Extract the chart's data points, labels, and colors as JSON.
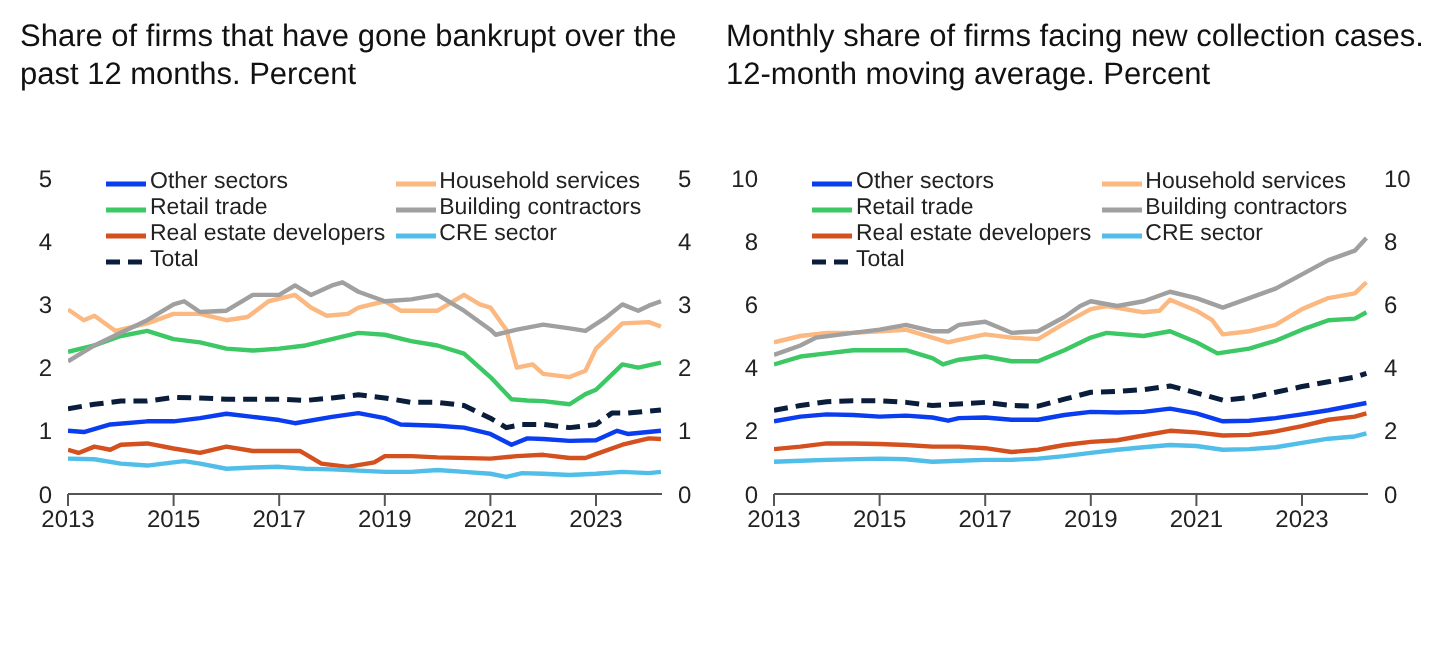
{
  "chart_data": [
    {
      "type": "line",
      "title": "Share of firms that have gone bankrupt over the past 12 months. Percent",
      "xlim": [
        2013,
        2024.25
      ],
      "xticks": [
        2013,
        2015,
        2017,
        2019,
        2021,
        2023
      ],
      "ylim": [
        0,
        5
      ],
      "yticks": [
        0,
        1,
        2,
        3,
        4,
        5
      ],
      "y2lim": [
        0,
        5
      ],
      "y2ticks": [
        0,
        1,
        2,
        3,
        4,
        5
      ],
      "grid": false,
      "legend": "top left",
      "marker": "none",
      "series": [
        {
          "name": "Other sectors",
          "color": "#0a3cf0",
          "x": [
            2013,
            2013.3,
            2013.8,
            2014.5,
            2015,
            2015.5,
            2016,
            2016.5,
            2017,
            2017.3,
            2018,
            2018.5,
            2019,
            2019.3,
            2020,
            2020.5,
            2021,
            2021.4,
            2021.7,
            2022,
            2022.5,
            2023,
            2023.4,
            2023.6,
            2024.23
          ],
          "values": [
            1.0,
            0.98,
            1.1,
            1.15,
            1.15,
            1.2,
            1.27,
            1.22,
            1.17,
            1.12,
            1.22,
            1.28,
            1.2,
            1.1,
            1.08,
            1.05,
            0.95,
            0.78,
            0.88,
            0.87,
            0.84,
            0.85,
            1.0,
            0.95,
            1.0
          ]
        },
        {
          "name": "Household services",
          "color": "#fbb880",
          "x": [
            2013,
            2013.3,
            2013.5,
            2013.9,
            2014.5,
            2015,
            2015.5,
            2016,
            2016.4,
            2016.8,
            2017.3,
            2017.6,
            2017.9,
            2018.3,
            2018.5,
            2019,
            2019.3,
            2020,
            2020.5,
            2020.8,
            2021,
            2021.3,
            2021.5,
            2021.8,
            2022,
            2022.5,
            2022.8,
            2023,
            2023.5,
            2024,
            2024.23
          ],
          "values": [
            2.92,
            2.75,
            2.82,
            2.58,
            2.7,
            2.85,
            2.85,
            2.75,
            2.8,
            3.05,
            3.15,
            2.95,
            2.82,
            2.85,
            2.95,
            3.05,
            2.9,
            2.9,
            3.15,
            3.0,
            2.95,
            2.6,
            2.0,
            2.05,
            1.9,
            1.85,
            1.95,
            2.3,
            2.7,
            2.72,
            2.65
          ]
        },
        {
          "name": "Retail trade",
          "color": "#3cc864",
          "x": [
            2013,
            2013.5,
            2014,
            2014.5,
            2015,
            2015.5,
            2016,
            2016.5,
            2017,
            2017.5,
            2018,
            2018.5,
            2019,
            2019.5,
            2020,
            2020.5,
            2021,
            2021.4,
            2021.7,
            2022,
            2022.5,
            2022.8,
            2023,
            2023.5,
            2023.8,
            2024.23
          ],
          "values": [
            2.25,
            2.35,
            2.5,
            2.58,
            2.45,
            2.4,
            2.3,
            2.27,
            2.3,
            2.35,
            2.45,
            2.55,
            2.52,
            2.42,
            2.35,
            2.22,
            1.85,
            1.5,
            1.48,
            1.47,
            1.42,
            1.58,
            1.65,
            2.05,
            2.0,
            2.08
          ]
        },
        {
          "name": "Building contractors",
          "color": "#a0a0a0",
          "x": [
            2013,
            2013.5,
            2014,
            2014.5,
            2015,
            2015.2,
            2015.5,
            2016,
            2016.5,
            2017,
            2017.3,
            2017.6,
            2018,
            2018.2,
            2018.5,
            2019,
            2019.5,
            2020,
            2020.5,
            2021,
            2021.1,
            2021.5,
            2022,
            2022.5,
            2022.8,
            2023.2,
            2023.5,
            2023.8,
            2024,
            2024.23
          ],
          "values": [
            2.1,
            2.35,
            2.55,
            2.75,
            3.0,
            3.05,
            2.88,
            2.9,
            3.15,
            3.15,
            3.3,
            3.15,
            3.3,
            3.35,
            3.2,
            3.05,
            3.08,
            3.15,
            2.9,
            2.6,
            2.52,
            2.6,
            2.68,
            2.62,
            2.58,
            2.8,
            3.0,
            2.9,
            2.98,
            3.05
          ]
        },
        {
          "name": "Real estate developers",
          "color": "#d4501e",
          "x": [
            2013,
            2013.2,
            2013.5,
            2013.8,
            2014,
            2014.5,
            2015,
            2015.5,
            2016,
            2016.5,
            2017,
            2017.4,
            2017.8,
            2018.3,
            2018.8,
            2019,
            2019.5,
            2020,
            2021,
            2021.5,
            2022,
            2022.5,
            2022.8,
            2023,
            2023.5,
            2024,
            2024.23
          ],
          "values": [
            0.7,
            0.65,
            0.75,
            0.7,
            0.78,
            0.8,
            0.72,
            0.65,
            0.75,
            0.68,
            0.68,
            0.68,
            0.48,
            0.43,
            0.5,
            0.6,
            0.6,
            0.58,
            0.56,
            0.6,
            0.62,
            0.57,
            0.57,
            0.63,
            0.78,
            0.88,
            0.87
          ]
        },
        {
          "name": "CRE sector",
          "color": "#50bee8",
          "x": [
            2013,
            2013.5,
            2014,
            2014.5,
            2015,
            2015.2,
            2015.5,
            2016,
            2016.5,
            2017,
            2017.5,
            2018,
            2018.5,
            2019,
            2019.5,
            2020,
            2020.5,
            2021,
            2021.3,
            2021.6,
            2022,
            2022.5,
            2023,
            2023.5,
            2024,
            2024.23
          ],
          "values": [
            0.56,
            0.55,
            0.48,
            0.45,
            0.5,
            0.52,
            0.48,
            0.4,
            0.42,
            0.43,
            0.4,
            0.39,
            0.37,
            0.35,
            0.35,
            0.38,
            0.35,
            0.32,
            0.27,
            0.33,
            0.32,
            0.3,
            0.32,
            0.35,
            0.33,
            0.35
          ]
        },
        {
          "name": "Total",
          "color": "#0a1e3c",
          "line_style": "dashed",
          "x": [
            2013,
            2013.5,
            2014,
            2014.5,
            2015,
            2015.5,
            2016,
            2016.5,
            2017,
            2017.5,
            2018,
            2018.5,
            2019,
            2019.5,
            2020,
            2020.5,
            2021,
            2021.3,
            2021.6,
            2022,
            2022.5,
            2022.8,
            2023,
            2023.3,
            2023.6,
            2024.23
          ],
          "values": [
            1.35,
            1.42,
            1.47,
            1.47,
            1.53,
            1.52,
            1.5,
            1.5,
            1.5,
            1.48,
            1.52,
            1.57,
            1.52,
            1.45,
            1.45,
            1.4,
            1.2,
            1.05,
            1.1,
            1.1,
            1.05,
            1.08,
            1.1,
            1.28,
            1.28,
            1.33
          ]
        }
      ]
    },
    {
      "type": "line",
      "title": "Monthly share of firms facing new collection cases. 12-month moving average. Percent",
      "xlim": [
        2013,
        2024.25
      ],
      "xticks": [
        2013,
        2015,
        2017,
        2019,
        2021,
        2023
      ],
      "ylim": [
        0,
        10
      ],
      "yticks": [
        0,
        2,
        4,
        6,
        8,
        10
      ],
      "y2lim": [
        0,
        10
      ],
      "y2ticks": [
        0,
        2,
        4,
        6,
        8,
        10
      ],
      "grid": false,
      "legend": "top left",
      "marker": "none",
      "series": [
        {
          "name": "Other sectors",
          "color": "#0a3cf0",
          "x": [
            2013,
            2013.5,
            2014,
            2014.5,
            2015,
            2015.5,
            2016,
            2016.3,
            2016.5,
            2017,
            2017.5,
            2018,
            2018.5,
            2019,
            2019.5,
            2020,
            2020.5,
            2021,
            2021.5,
            2022,
            2022.5,
            2023,
            2023.5,
            2024.22
          ],
          "values": [
            2.3,
            2.45,
            2.52,
            2.5,
            2.45,
            2.48,
            2.42,
            2.32,
            2.4,
            2.42,
            2.35,
            2.35,
            2.5,
            2.6,
            2.58,
            2.6,
            2.7,
            2.55,
            2.3,
            2.32,
            2.4,
            2.52,
            2.65,
            2.88
          ]
        },
        {
          "name": "Household services",
          "color": "#fbb880",
          "x": [
            2013,
            2013.5,
            2014,
            2014.5,
            2015,
            2015.5,
            2016,
            2016.3,
            2016.5,
            2017,
            2017.5,
            2018,
            2018.5,
            2019,
            2019.3,
            2020,
            2020.3,
            2020.5,
            2021,
            2021.3,
            2021.5,
            2022,
            2022.5,
            2023,
            2023.5,
            2024,
            2024.22
          ],
          "values": [
            4.8,
            5.0,
            5.1,
            5.1,
            5.15,
            5.2,
            4.95,
            4.8,
            4.88,
            5.05,
            4.95,
            4.9,
            5.4,
            5.85,
            5.95,
            5.75,
            5.8,
            6.15,
            5.8,
            5.5,
            5.05,
            5.15,
            5.35,
            5.85,
            6.2,
            6.35,
            6.7
          ]
        },
        {
          "name": "Retail trade",
          "color": "#3cc864",
          "x": [
            2013,
            2013.5,
            2014,
            2014.5,
            2015,
            2015.5,
            2016,
            2016.2,
            2016.5,
            2017,
            2017.5,
            2018,
            2018.5,
            2019,
            2019.3,
            2020,
            2020.5,
            2021,
            2021.4,
            2022,
            2022.5,
            2023,
            2023.5,
            2024,
            2024.22
          ],
          "values": [
            4.1,
            4.35,
            4.45,
            4.55,
            4.55,
            4.55,
            4.3,
            4.1,
            4.25,
            4.35,
            4.2,
            4.2,
            4.55,
            4.95,
            5.1,
            5.0,
            5.15,
            4.8,
            4.45,
            4.6,
            4.85,
            5.2,
            5.5,
            5.55,
            5.75
          ]
        },
        {
          "name": "Building contractors",
          "color": "#a0a0a0",
          "x": [
            2013,
            2013.5,
            2013.8,
            2014.5,
            2015,
            2015.5,
            2016,
            2016.3,
            2016.5,
            2017,
            2017.5,
            2018,
            2018.5,
            2018.8,
            2019,
            2019.5,
            2020,
            2020.5,
            2021,
            2021.5,
            2022,
            2022.5,
            2023,
            2023.5,
            2024,
            2024.22
          ],
          "values": [
            4.4,
            4.7,
            4.95,
            5.1,
            5.2,
            5.35,
            5.15,
            5.15,
            5.35,
            5.45,
            5.1,
            5.15,
            5.6,
            5.95,
            6.1,
            5.95,
            6.1,
            6.4,
            6.2,
            5.9,
            6.2,
            6.5,
            6.95,
            7.4,
            7.7,
            8.1
          ]
        },
        {
          "name": "Real estate developers",
          "color": "#d4501e",
          "x": [
            2013,
            2013.5,
            2014,
            2014.5,
            2015,
            2015.5,
            2016,
            2016.5,
            2017,
            2017.5,
            2018,
            2018.5,
            2019,
            2019.5,
            2020,
            2020.5,
            2021,
            2021.5,
            2022,
            2022.5,
            2023,
            2023.5,
            2024,
            2024.22
          ],
          "values": [
            1.42,
            1.5,
            1.6,
            1.6,
            1.58,
            1.55,
            1.5,
            1.5,
            1.45,
            1.33,
            1.4,
            1.55,
            1.65,
            1.7,
            1.85,
            2.0,
            1.95,
            1.85,
            1.87,
            1.98,
            2.15,
            2.35,
            2.45,
            2.55
          ]
        },
        {
          "name": "CRE sector",
          "color": "#50bee8",
          "x": [
            2013,
            2013.5,
            2014,
            2015,
            2015.5,
            2016,
            2016.5,
            2017,
            2017.5,
            2018,
            2018.5,
            2019,
            2019.5,
            2020,
            2020.5,
            2021,
            2021.5,
            2022,
            2022.5,
            2023,
            2023.5,
            2024,
            2024.22
          ],
          "values": [
            1.02,
            1.05,
            1.08,
            1.12,
            1.1,
            1.02,
            1.05,
            1.08,
            1.08,
            1.12,
            1.2,
            1.3,
            1.4,
            1.48,
            1.55,
            1.52,
            1.4,
            1.42,
            1.48,
            1.62,
            1.75,
            1.82,
            1.92
          ]
        },
        {
          "name": "Total",
          "color": "#0a1e3c",
          "line_style": "dashed",
          "x": [
            2013,
            2013.5,
            2014,
            2014.5,
            2015,
            2015.5,
            2016,
            2016.5,
            2017,
            2017.5,
            2018,
            2018.5,
            2019,
            2019.5,
            2020,
            2020.5,
            2021,
            2021.5,
            2022,
            2022.5,
            2023,
            2023.5,
            2024,
            2024.22
          ],
          "values": [
            2.65,
            2.8,
            2.92,
            2.95,
            2.95,
            2.9,
            2.8,
            2.85,
            2.9,
            2.8,
            2.78,
            3.0,
            3.22,
            3.25,
            3.3,
            3.42,
            3.2,
            2.97,
            3.05,
            3.22,
            3.4,
            3.55,
            3.7,
            3.82
          ]
        }
      ]
    }
  ]
}
